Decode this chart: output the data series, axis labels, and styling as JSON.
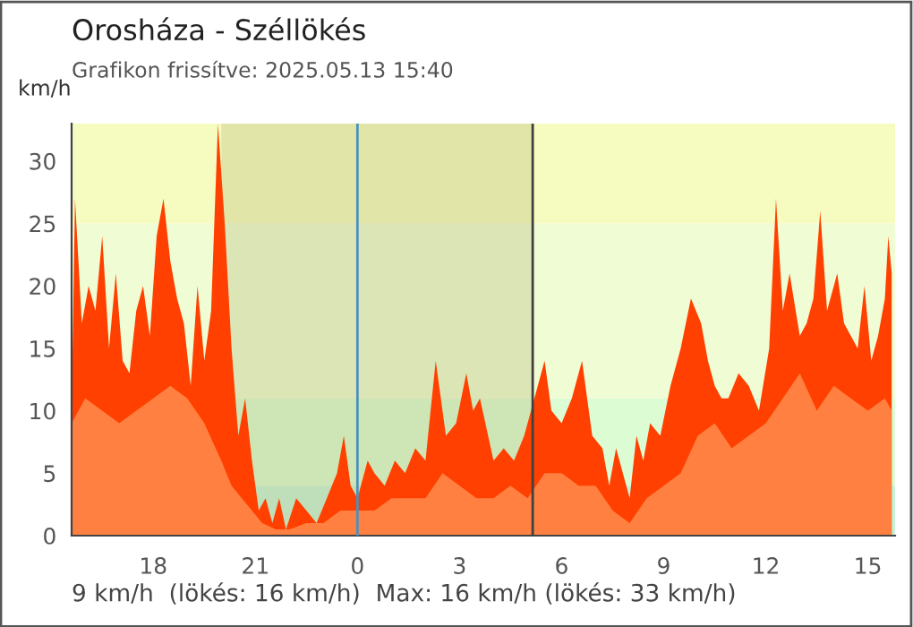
{
  "chart_data": {
    "type": "area",
    "title": "Orosháza - Széllökés",
    "subtitle": "Grafikon frissítve: 2025.05.13 15:40",
    "ylabel": "km/h",
    "series": [
      {
        "color": "#ff4000",
        "x": [
          "2025-05-12T15:36",
          "2025-05-12T15:42",
          "2025-05-12T15:54",
          "2025-05-12T16:06",
          "2025-05-12T16:18",
          "2025-05-12T16:30",
          "2025-05-12T16:42",
          "2025-05-12T16:54",
          "2025-05-12T17:06",
          "2025-05-12T17:18",
          "2025-05-12T17:30",
          "2025-05-12T17:42",
          "2025-05-12T17:54",
          "2025-05-12T18:06",
          "2025-05-12T18:18",
          "2025-05-12T18:30",
          "2025-05-12T18:42",
          "2025-05-12T18:54",
          "2025-05-12T19:06",
          "2025-05-12T19:18",
          "2025-05-12T19:30",
          "2025-05-12T19:42",
          "2025-05-12T19:54",
          "2025-05-12T20:06",
          "2025-05-12T20:18",
          "2025-05-12T20:30",
          "2025-05-12T20:42",
          "2025-05-12T20:54",
          "2025-05-12T21:06",
          "2025-05-12T21:18",
          "2025-05-12T21:30",
          "2025-05-12T21:42",
          "2025-05-12T21:54",
          "2025-05-12T22:12",
          "2025-05-12T22:30",
          "2025-05-12T22:48",
          "2025-05-12T23:06",
          "2025-05-12T23:24",
          "2025-05-12T23:36",
          "2025-05-12T23:48",
          "2025-05-13T00:00",
          "2025-05-13T00:18",
          "2025-05-13T00:30",
          "2025-05-13T00:48",
          "2025-05-13T01:06",
          "2025-05-13T01:24",
          "2025-05-13T01:42",
          "2025-05-13T02:00",
          "2025-05-13T02:18",
          "2025-05-13T02:36",
          "2025-05-13T02:54",
          "2025-05-13T03:12",
          "2025-05-13T03:24",
          "2025-05-13T03:36",
          "2025-05-13T04:00",
          "2025-05-13T04:18",
          "2025-05-13T04:36",
          "2025-05-13T04:54",
          "2025-05-13T05:18",
          "2025-05-13T05:30",
          "2025-05-13T05:42",
          "2025-05-13T06:00",
          "2025-05-13T06:18",
          "2025-05-13T06:36",
          "2025-05-13T06:54",
          "2025-05-13T07:12",
          "2025-05-13T07:24",
          "2025-05-13T07:36",
          "2025-05-13T07:48",
          "2025-05-13T08:00",
          "2025-05-13T08:12",
          "2025-05-13T08:24",
          "2025-05-13T08:36",
          "2025-05-13T08:54",
          "2025-05-13T09:12",
          "2025-05-13T09:30",
          "2025-05-13T09:48",
          "2025-05-13T10:06",
          "2025-05-13T10:18",
          "2025-05-13T10:30",
          "2025-05-13T10:42",
          "2025-05-13T10:54",
          "2025-05-13T11:12",
          "2025-05-13T11:30",
          "2025-05-13T11:48",
          "2025-05-13T12:06",
          "2025-05-13T12:18",
          "2025-05-13T12:30",
          "2025-05-13T12:42",
          "2025-05-13T13:00",
          "2025-05-13T13:12",
          "2025-05-13T13:24",
          "2025-05-13T13:36",
          "2025-05-13T13:48",
          "2025-05-13T14:06",
          "2025-05-13T14:18",
          "2025-05-13T14:30",
          "2025-05-13T14:42",
          "2025-05-13T14:54",
          "2025-05-13T15:06",
          "2025-05-13T15:18",
          "2025-05-13T15:30",
          "2025-05-13T15:36",
          "2025-05-13T15:42"
        ],
        "values": [
          10,
          27,
          17,
          20,
          18,
          24,
          15,
          21,
          14,
          13,
          18,
          20,
          16,
          24,
          27,
          22,
          19,
          17,
          12,
          20,
          14,
          18,
          33,
          25,
          15,
          8,
          11,
          6,
          2,
          3,
          1,
          3,
          0.5,
          3,
          2,
          1,
          3,
          5,
          8,
          4,
          3,
          6,
          5,
          4,
          6,
          5,
          7,
          6,
          14,
          8,
          9,
          13,
          10,
          11,
          6,
          7,
          6,
          8,
          12,
          14,
          10,
          9,
          11,
          14,
          8,
          7,
          4,
          7,
          5,
          3,
          8,
          6,
          9,
          8,
          12,
          15,
          19,
          17,
          14,
          12,
          11,
          11,
          13,
          12,
          10,
          15,
          27,
          18,
          21,
          16,
          17,
          19,
          26,
          18,
          21,
          17,
          16,
          15,
          20,
          14,
          16,
          19,
          24,
          21
        ]
      },
      {
        "color": "#ff8040",
        "x": [
          "2025-05-12T15:36",
          "2025-05-12T16:00",
          "2025-05-12T16:30",
          "2025-05-12T17:00",
          "2025-05-12T17:30",
          "2025-05-12T18:00",
          "2025-05-12T18:30",
          "2025-05-12T19:00",
          "2025-05-12T19:30",
          "2025-05-12T20:00",
          "2025-05-12T20:18",
          "2025-05-12T20:36",
          "2025-05-12T20:54",
          "2025-05-12T21:12",
          "2025-05-12T21:36",
          "2025-05-12T22:00",
          "2025-05-12T22:30",
          "2025-05-12T23:00",
          "2025-05-12T23:30",
          "2025-05-13T00:00",
          "2025-05-13T00:30",
          "2025-05-13T01:00",
          "2025-05-13T01:30",
          "2025-05-13T02:00",
          "2025-05-13T02:30",
          "2025-05-13T03:00",
          "2025-05-13T03:30",
          "2025-05-13T04:00",
          "2025-05-13T04:30",
          "2025-05-13T05:00",
          "2025-05-13T05:30",
          "2025-05-13T06:00",
          "2025-05-13T06:30",
          "2025-05-13T07:00",
          "2025-05-13T07:30",
          "2025-05-13T08:00",
          "2025-05-13T08:30",
          "2025-05-13T09:00",
          "2025-05-13T09:30",
          "2025-05-13T10:00",
          "2025-05-13T10:30",
          "2025-05-13T11:00",
          "2025-05-13T11:30",
          "2025-05-13T12:00",
          "2025-05-13T12:30",
          "2025-05-13T13:00",
          "2025-05-13T13:30",
          "2025-05-13T14:00",
          "2025-05-13T14:30",
          "2025-05-13T15:00",
          "2025-05-13T15:30",
          "2025-05-13T15:42"
        ],
        "values": [
          9,
          11,
          10,
          9,
          10,
          11,
          12,
          11,
          9,
          6,
          4,
          3,
          2,
          1,
          0.5,
          0.5,
          1,
          1,
          2,
          2,
          2,
          3,
          3,
          3,
          5,
          4,
          3,
          3,
          4,
          3,
          5,
          5,
          4,
          4,
          2,
          1,
          3,
          4,
          5,
          8,
          9,
          7,
          8,
          9,
          11,
          13,
          10,
          12,
          11,
          10,
          11,
          10
        ]
      }
    ],
    "xlim": [
      "2025-05-12T15:36",
      "2025-05-13T15:48"
    ],
    "xticks": [
      {
        "value": "2025-05-12T18:00",
        "label": "18"
      },
      {
        "value": "2025-05-12T21:00",
        "label": "21"
      },
      {
        "value": "2025-05-13T00:00",
        "label": "0"
      },
      {
        "value": "2025-05-13T03:00",
        "label": "3"
      },
      {
        "value": "2025-05-13T06:00",
        "label": "6"
      },
      {
        "value": "2025-05-13T09:00",
        "label": "9"
      },
      {
        "value": "2025-05-13T12:00",
        "label": "12"
      },
      {
        "value": "2025-05-13T15:00",
        "label": "15"
      }
    ],
    "ylim": [
      0,
      33
    ],
    "yticks": [
      0,
      5,
      10,
      15,
      20,
      25,
      30
    ],
    "bands": [
      {
        "axis": "y",
        "from": 0,
        "to": 4,
        "color": "#c4f4d8"
      },
      {
        "axis": "y",
        "from": 4,
        "to": 11,
        "color": "#dcfcd4"
      },
      {
        "axis": "y",
        "from": 11,
        "to": 25,
        "color": "#f0fcd4"
      },
      {
        "axis": "y",
        "from": 25,
        "to": 33,
        "color": "#f6fcc0"
      },
      {
        "axis": "x",
        "from": "2025-05-12T20:00",
        "to": "2025-05-13T05:09",
        "color": "#b0b070"
      }
    ],
    "ref_lines": [
      {
        "axis": "x",
        "value": "2025-05-13T00:00",
        "color": "#4a90c0"
      },
      {
        "axis": "x",
        "value": "2025-05-13T05:09",
        "color": "#404040"
      }
    ],
    "annotations": [
      "9 km/h  (lökés: 16 km/h)  Max: 16 km/h (lökés: 33 km/h)"
    ],
    "grid": false,
    "legend": false
  }
}
